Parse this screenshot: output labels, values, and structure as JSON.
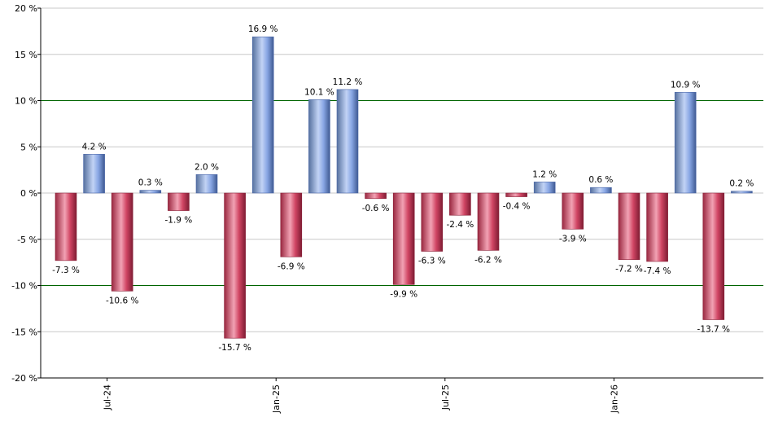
{
  "chart_data": {
    "type": "bar",
    "title": "",
    "xlabel": "",
    "ylabel": "",
    "ylim": [
      -20,
      20
    ],
    "ytick_step": 5,
    "y_tick_suffix": " %",
    "value_suffix": " %",
    "reference_lines": [
      10,
      -10
    ],
    "grid": true,
    "colors": {
      "positive": "#7f9fe0",
      "positive_light": "#c9d8f8",
      "positive_dark": "#4a66a8",
      "negative": "#c83a58",
      "negative_light": "#f3a5b6",
      "negative_dark": "#8a1f37",
      "gridline": "#c8c8c8",
      "reference_line": "#006400"
    },
    "categories": [
      "2024-06",
      "2024-07",
      "2024-08",
      "2024-09",
      "2024-10",
      "2024-11",
      "2024-12",
      "2025-01",
      "2025-02",
      "2025-03",
      "2025-04",
      "2025-05",
      "2025-06",
      "2025-07",
      "2025-08",
      "2025-09",
      "2025-10",
      "2025-11",
      "2025-12",
      "2026-01",
      "2026-02",
      "2026-03",
      "2026-04",
      "2026-05",
      "2026-06"
    ],
    "values": [
      -7.3,
      4.2,
      -10.6,
      0.3,
      -1.9,
      2.0,
      -15.7,
      16.9,
      -6.9,
      10.1,
      11.2,
      -0.6,
      -9.9,
      -6.3,
      -2.4,
      -6.2,
      -0.4,
      1.2,
      -3.9,
      0.6,
      -7.2,
      -7.4,
      10.9,
      -13.7,
      0.2
    ],
    "value_labels": [
      "-7.3 %",
      "4.2 %",
      "-10.6 %",
      "0.3 %",
      "-1.9 %",
      "2.0 %",
      "-15.7 %",
      "16.9 %",
      "-6.9 %",
      "10.1 %",
      "11.2 %",
      "-0.6 %",
      "-9.9 %",
      "-6.3 %",
      "-2.4 %",
      "-6.2 %",
      "-0.4 %",
      "1.2 %",
      "-3.9 %",
      "0.6 %",
      "-7.2 %",
      "-7.4 %",
      "10.9 %",
      "-13.7 %",
      "0.2 %"
    ],
    "y_tick_labels": [
      "20 %",
      "15 %",
      "10 %",
      "5 %",
      "0 %",
      "-5 %",
      "-10 %",
      "-15 %",
      "-20 %"
    ],
    "x_tick_labels": [
      {
        "label": "Jul-24",
        "index": 1
      },
      {
        "label": "Jan-25",
        "index": 7
      },
      {
        "label": "Jul-25",
        "index": 13
      },
      {
        "label": "Jan-26",
        "index": 19
      }
    ]
  }
}
